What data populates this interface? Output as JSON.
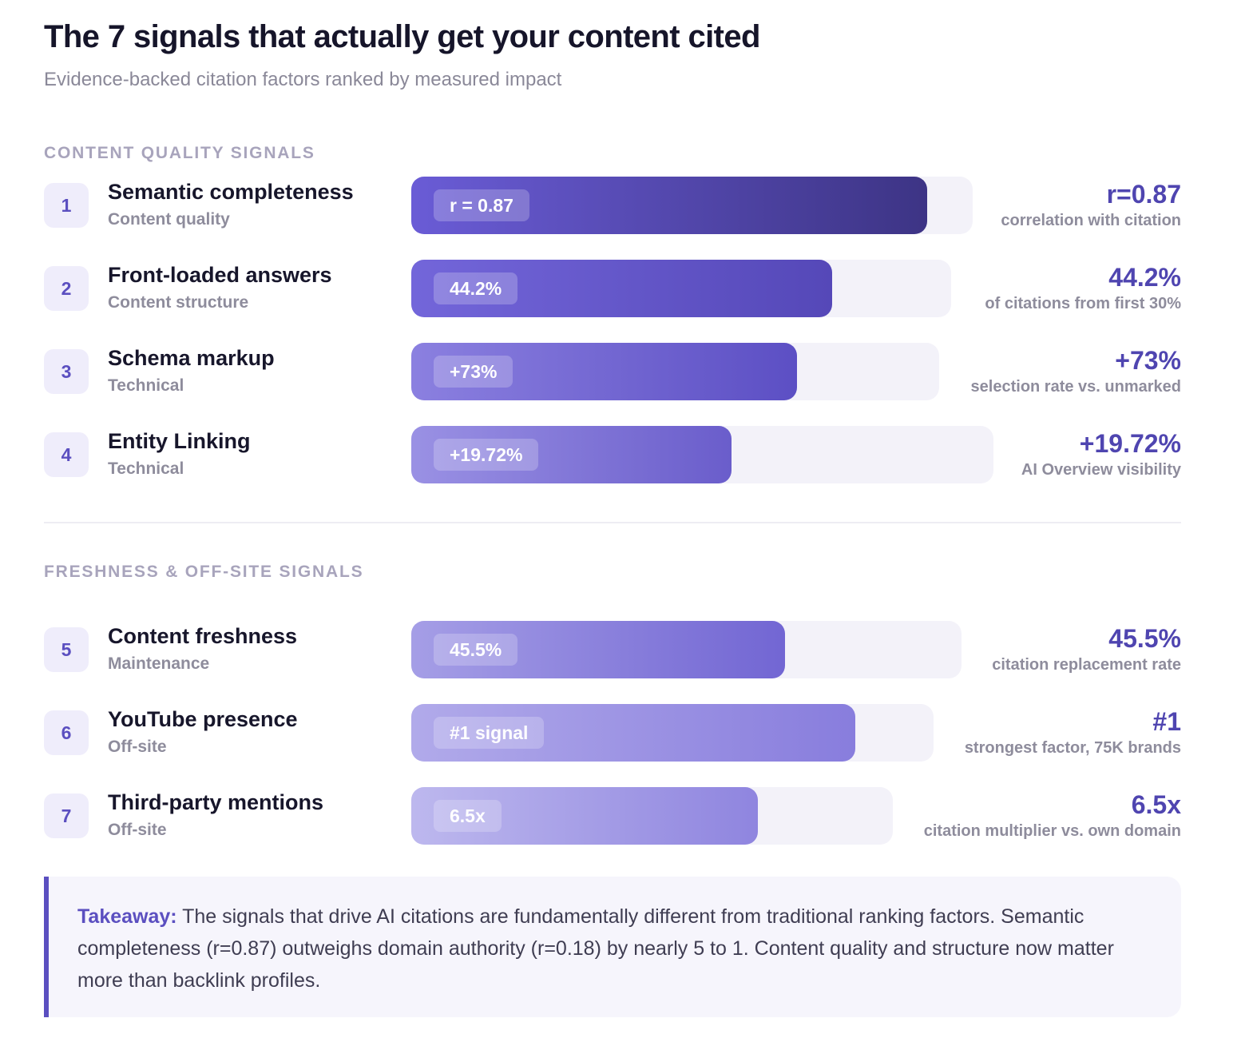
{
  "header": {
    "title": "The 7 signals that actually get your content cited",
    "subtitle": "Evidence-backed citation factors ranked by measured impact"
  },
  "sections": {
    "content_label": "CONTENT QUALITY SIGNALS",
    "offsite_label": "FRESHNESS & OFF-SITE SIGNALS"
  },
  "colors": {
    "accent": "#5b4fc0",
    "track": "#f3f2f9"
  },
  "chart_data": {
    "type": "bar",
    "orientation": "horizontal",
    "items": [
      {
        "rank": "1",
        "name": "Semantic completeness",
        "category": "Content quality",
        "bar_label": "r = 0.87",
        "metric_value": "r=0.87",
        "metric_desc": "correlation with citation",
        "fill_fraction": 0.92,
        "gradient": [
          "#6a5cd6",
          "#3d3485"
        ]
      },
      {
        "rank": "2",
        "name": "Front-loaded answers",
        "category": "Content structure",
        "bar_label": "44.2%",
        "metric_value": "44.2%",
        "metric_desc": "of citations from first 30%",
        "fill_fraction": 0.78,
        "gradient": [
          "#7366da",
          "#5548b8"
        ]
      },
      {
        "rank": "3",
        "name": "Schema markup",
        "category": "Technical",
        "bar_label": "+73%",
        "metric_value": "+73%",
        "metric_desc": "selection rate vs. unmarked",
        "fill_fraction": 0.73,
        "gradient": [
          "#8b80e0",
          "#5c4fc4"
        ]
      },
      {
        "rank": "4",
        "name": "Entity Linking",
        "category": "Technical",
        "bar_label": "+19.72%",
        "metric_value": "+19.72%",
        "metric_desc": "AI Overview visibility",
        "fill_fraction": 0.55,
        "gradient": [
          "#9a91e4",
          "#6a5dcb"
        ]
      },
      {
        "rank": "5",
        "name": "Content freshness",
        "category": "Maintenance",
        "bar_label": "45.5%",
        "metric_value": "45.5%",
        "metric_desc": "citation replacement rate",
        "fill_fraction": 0.68,
        "gradient": [
          "#a59ee6",
          "#7266d3"
        ]
      },
      {
        "rank": "6",
        "name": "YouTube presence",
        "category": "Off-site",
        "bar_label": "#1 signal",
        "metric_value": "#1",
        "metric_desc": "strongest factor, 75K brands",
        "fill_fraction": 0.85,
        "gradient": [
          "#b1aaea",
          "#887ddd"
        ]
      },
      {
        "rank": "7",
        "name": "Third-party mentions",
        "category": "Off-site",
        "bar_label": "6.5x",
        "metric_value": "6.5x",
        "metric_desc": "citation multiplier vs. own domain",
        "fill_fraction": 0.72,
        "gradient": [
          "#bdb8ee",
          "#8f85df"
        ]
      }
    ]
  },
  "takeaway": {
    "lead": "Takeaway:",
    "text": " The signals that drive AI citations are fundamentally different from traditional ranking factors. Semantic completeness (r=0.87) outweighs domain authority (r=0.18) by nearly 5 to 1. Content quality and structure now matter more than backlink profiles."
  }
}
